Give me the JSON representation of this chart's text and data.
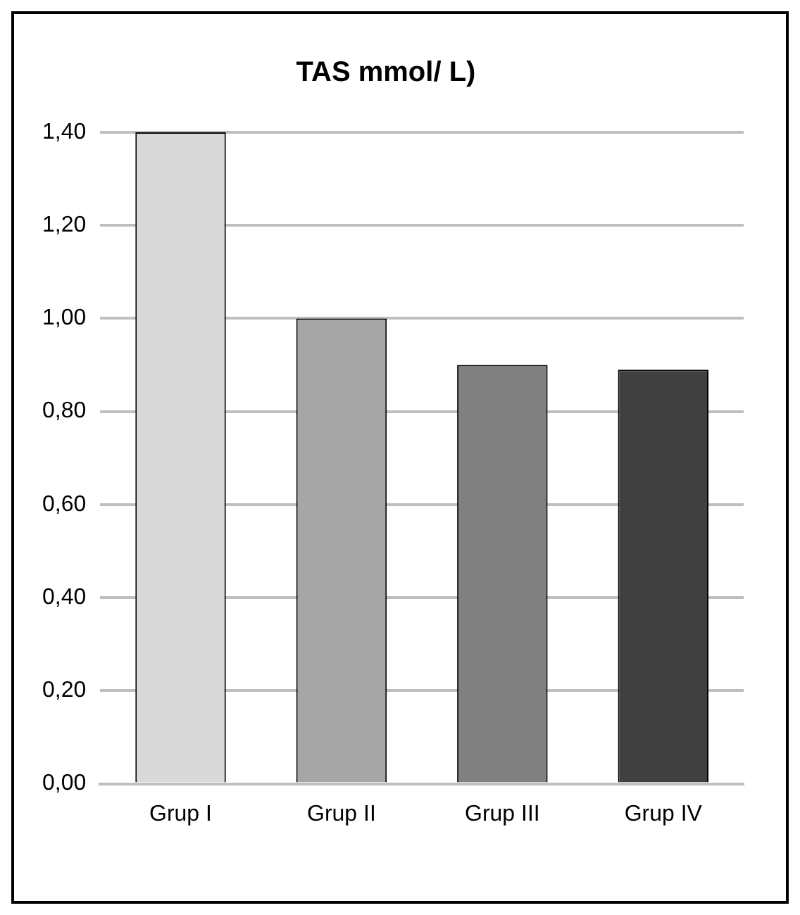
{
  "chart_data": {
    "type": "bar",
    "title": "TAS mmol/ L)",
    "categories": [
      "Grup I",
      "Grup II",
      "Grup III",
      "Grup IV"
    ],
    "values": [
      1.4,
      1.0,
      0.9,
      0.89
    ],
    "colors": [
      "#d9d9d9",
      "#a6a6a6",
      "#808080",
      "#404040"
    ],
    "ylim": [
      0,
      1.4
    ],
    "yticks": [
      {
        "value": 0,
        "label": "0,00"
      },
      {
        "value": 0.2,
        "label": "0,20"
      },
      {
        "value": 0.4,
        "label": "0,40"
      },
      {
        "value": 0.6,
        "label": "0,60"
      },
      {
        "value": 0.8,
        "label": "0,80"
      },
      {
        "value": 1.0,
        "label": "1,00"
      },
      {
        "value": 1.2,
        "label": "1,20"
      },
      {
        "value": 1.4,
        "label": "1,40"
      }
    ],
    "grid": "y",
    "legend": false
  }
}
